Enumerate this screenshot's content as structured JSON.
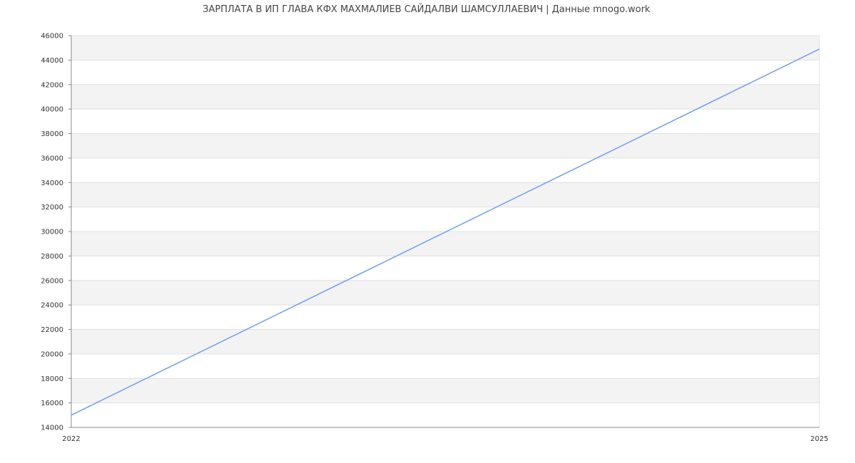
{
  "chart_data": {
    "type": "line",
    "title": "ЗАРПЛАТА В ИП ГЛАВА КФХ МАХМАЛИЕВ САЙДАЛВИ ШАМСУЛЛАЕВИЧ | Данные mnogo.work",
    "xlabel": "",
    "ylabel": "",
    "x": [
      2022,
      2025
    ],
    "x_ticks": [
      "2022",
      "2025"
    ],
    "xlim": [
      2022,
      2025
    ],
    "ylim": [
      14000,
      46000
    ],
    "y_ticks": [
      14000,
      16000,
      18000,
      20000,
      22000,
      24000,
      26000,
      28000,
      30000,
      32000,
      34000,
      36000,
      38000,
      40000,
      42000,
      44000,
      46000
    ],
    "series": [
      {
        "values": [
          15000,
          44900
        ],
        "color": "#6f9cf0"
      }
    ],
    "grid": true,
    "band_color": "#f3f3f3",
    "grid_color": "#e0e0e0"
  }
}
